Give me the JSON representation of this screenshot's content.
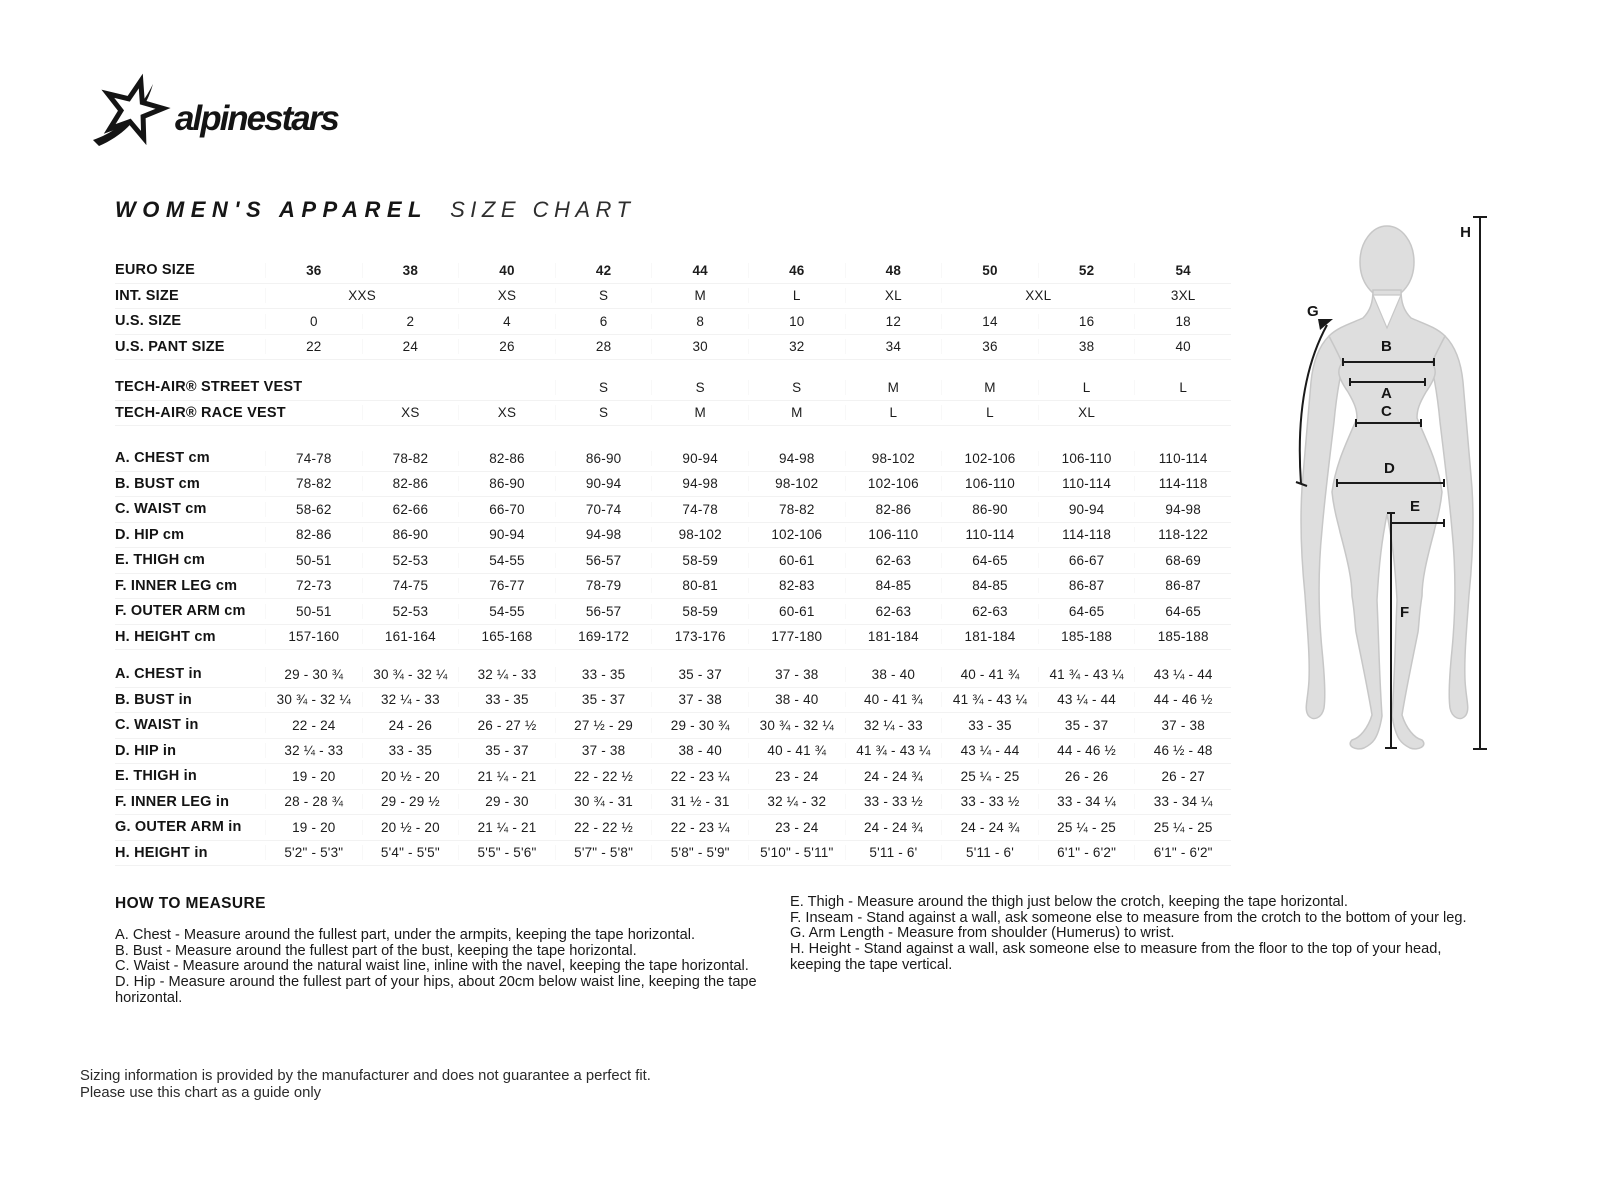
{
  "logo": {
    "brand": "alpinestars"
  },
  "title": {
    "main": "WOMEN'S APPAREL",
    "sub": "SIZE CHART"
  },
  "size_table": {
    "rows": [
      {
        "label": "EURO SIZE",
        "values": [
          "36",
          "38",
          "40",
          "42",
          "44",
          "46",
          "48",
          "50",
          "52",
          "54"
        ]
      },
      {
        "label": "INT. SIZE",
        "values": [
          {
            "t": "XXS",
            "s": 2
          },
          "XS",
          "S",
          "M",
          "L",
          "XL",
          {
            "t": "XXL",
            "s": 2
          },
          "3XL"
        ]
      },
      {
        "label": "U.S. SIZE",
        "values": [
          "0",
          "2",
          "4",
          "6",
          "8",
          "10",
          "12",
          "14",
          "16",
          "18"
        ]
      },
      {
        "label": "U.S. PANT SIZE",
        "values": [
          "22",
          "24",
          "26",
          "28",
          "30",
          "32",
          "34",
          "36",
          "38",
          "40"
        ]
      },
      {
        "label": "TECH-AIR® STREET VEST",
        "values": [
          "",
          "",
          "",
          "S",
          "S",
          "S",
          "M",
          "M",
          "L",
          "L"
        ]
      },
      {
        "label": "TECH-AIR® RACE VEST",
        "values": [
          "",
          "XS",
          "XS",
          "S",
          "M",
          "M",
          "L",
          "L",
          "XL",
          ""
        ]
      },
      {
        "label": "A. CHEST cm",
        "values": [
          "74-78",
          "78-82",
          "82-86",
          "86-90",
          "90-94",
          "94-98",
          "98-102",
          "102-106",
          "106-110",
          "110-114"
        ]
      },
      {
        "label": "B. BUST cm",
        "values": [
          "78-82",
          "82-86",
          "86-90",
          "90-94",
          "94-98",
          "98-102",
          "102-106",
          "106-110",
          "110-114",
          "114-118"
        ]
      },
      {
        "label": "C. WAIST cm",
        "values": [
          "58-62",
          "62-66",
          "66-70",
          "70-74",
          "74-78",
          "78-82",
          "82-86",
          "86-90",
          "90-94",
          "94-98"
        ]
      },
      {
        "label": "D. HIP cm",
        "values": [
          "82-86",
          "86-90",
          "90-94",
          "94-98",
          "98-102",
          "102-106",
          "106-110",
          "110-114",
          "114-118",
          "118-122"
        ]
      },
      {
        "label": "E. THIGH cm",
        "values": [
          "50-51",
          "52-53",
          "54-55",
          "56-57",
          "58-59",
          "60-61",
          "62-63",
          "64-65",
          "66-67",
          "68-69"
        ]
      },
      {
        "label": "F. INNER LEG cm",
        "values": [
          "72-73",
          "74-75",
          "76-77",
          "78-79",
          "80-81",
          "82-83",
          "84-85",
          "84-85",
          "86-87",
          "86-87"
        ]
      },
      {
        "label": "F. OUTER ARM cm",
        "values": [
          "50-51",
          "52-53",
          "54-55",
          "56-57",
          "58-59",
          "60-61",
          "62-63",
          "62-63",
          "64-65",
          "64-65"
        ]
      },
      {
        "label": "H. HEIGHT cm",
        "values": [
          "157-160",
          "161-164",
          "165-168",
          "169-172",
          "173-176",
          "177-180",
          "181-184",
          "181-184",
          "185-188",
          "185-188"
        ]
      },
      {
        "label": "A. CHEST in",
        "values": [
          "29 - 30 ¾",
          "30 ¾ - 32 ¼",
          "32 ¼ - 33",
          "33 - 35",
          "35 - 37",
          "37 - 38",
          "38 - 40",
          "40 - 41 ¾",
          "41 ¾ - 43 ¼",
          "43 ¼ - 44"
        ]
      },
      {
        "label": "B. BUST in",
        "values": [
          "30 ¾ - 32 ¼",
          "32 ¼ - 33",
          "33 - 35",
          "35 - 37",
          "37 - 38",
          "38 - 40",
          "40 - 41 ¾",
          "41 ¾ - 43 ¼",
          "43 ¼ - 44",
          "44 - 46 ½"
        ]
      },
      {
        "label": "C. WAIST in",
        "values": [
          "22 - 24",
          "24 - 26",
          "26 - 27 ½",
          "27 ½ - 29",
          "29 - 30 ¾",
          "30 ¾ - 32 ¼",
          "32 ¼ - 33",
          "33 - 35",
          "35 - 37",
          "37 - 38"
        ]
      },
      {
        "label": "D. HIP in",
        "values": [
          "32 ¼ - 33",
          "33 - 35",
          "35 - 37",
          "37 - 38",
          "38 - 40",
          "40 - 41 ¾",
          "41 ¾ - 43 ¼",
          "43 ¼ - 44",
          "44 - 46 ½",
          "46 ½ - 48"
        ]
      },
      {
        "label": "E. THIGH in",
        "values": [
          "19 - 20",
          "20 ½ - 20",
          "21 ¼ - 21",
          "22 - 22 ½",
          "22 - 23 ¼",
          "23 - 24",
          "24 - 24 ¾",
          "25 ¼ - 25",
          "26 - 26",
          "26 - 27"
        ]
      },
      {
        "label": "F. INNER LEG in",
        "values": [
          "28 - 28 ¾",
          "29 - 29 ½",
          "29 - 30",
          "30 ¾ - 31",
          "31 ½ - 31",
          "32 ¼ - 32",
          "33 - 33 ½",
          "33 - 33 ½",
          "33 - 34 ¼",
          "33 - 34 ¼"
        ]
      },
      {
        "label": "G. OUTER ARM in",
        "values": [
          "19 - 20",
          "20 ½ - 20",
          "21 ¼ - 21",
          "22 - 22 ½",
          "22 - 23 ¼",
          "23 - 24",
          "24 - 24 ¾",
          "24 - 24 ¾",
          "25 ¼ - 25",
          "25 ¼ - 25"
        ]
      },
      {
        "label": "H. HEIGHT in",
        "values": [
          "5'2\" - 5'3\"",
          "5'4\" - 5'5\"",
          "5'5\" - 5'6\"",
          "5'7\" - 5'8\"",
          "5'8\" - 5'9\"",
          "5'10\" - 5'11\"",
          "5'11 - 6'",
          "5'11 - 6'",
          "6'1\" - 6'2\"",
          "6'1\" - 6'2\""
        ]
      }
    ]
  },
  "figure": {
    "labels": {
      "A": "A",
      "B": "B",
      "C": "C",
      "D": "D",
      "E": "E",
      "F": "F",
      "G": "G",
      "H": "H"
    }
  },
  "how_to_measure": {
    "title": "HOW TO MEASURE",
    "left": [
      "A. Chest - Measure around the fullest part, under the armpits, keeping the tape horizontal.",
      "B. Bust - Measure around the fullest part of the bust, keeping the tape horizontal.",
      "C. Waist - Measure around the natural waist line, inline with the navel, keeping the tape horizontal.",
      "D. Hip - Measure around the fullest part of your hips, about 20cm below waist line, keeping the tape horizontal."
    ],
    "right": [
      "E. Thigh - Measure around the thigh just below the crotch, keeping the tape horizontal.",
      "F. Inseam - Stand against a wall, ask someone else to measure from the crotch to the bottom of your leg.",
      "G. Arm Length - Measure from shoulder (Humerus) to wrist.",
      "H. Height - Stand against a wall, ask someone else to measure from the floor to the top of your head, keeping the tape vertical."
    ]
  },
  "footer": {
    "line1": "Sizing information is provided by the manufacturer and does not guarantee a perfect fit.",
    "line2": "Please use this chart as a guide only"
  }
}
